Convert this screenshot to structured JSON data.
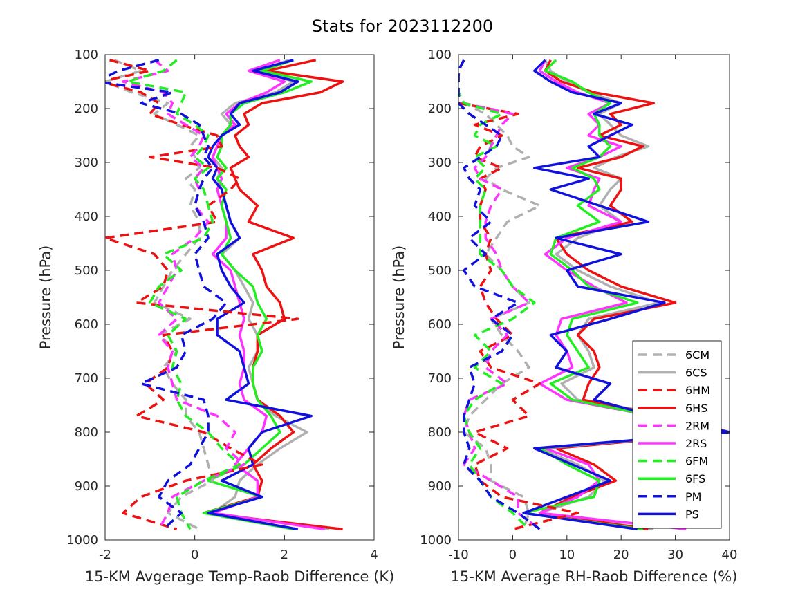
{
  "title": "Stats for 2023112200",
  "colors": {
    "6CM": "#b0b0b0",
    "6CS": "#b0b0b0",
    "6HM": "#ee1111",
    "6HS": "#ee1111",
    "2RM": "#ff33ff",
    "2RS": "#ff33ff",
    "6FM": "#22ee22",
    "6FS": "#22ee22",
    "PM": "#1111dd",
    "PS": "#1111dd"
  },
  "legend": {
    "position": "bottom-right of right panel",
    "entries": [
      {
        "name": "6CM",
        "style": "dashed"
      },
      {
        "name": "6CS",
        "style": "solid"
      },
      {
        "name": "6HM",
        "style": "dashed"
      },
      {
        "name": "6HS",
        "style": "solid"
      },
      {
        "name": "2RM",
        "style": "dashed"
      },
      {
        "name": "2RS",
        "style": "solid"
      },
      {
        "name": "6FM",
        "style": "dashed"
      },
      {
        "name": "6FS",
        "style": "solid"
      },
      {
        "name": "PM",
        "style": "dashed"
      },
      {
        "name": "PS",
        "style": "solid"
      }
    ]
  },
  "chart_data": [
    {
      "type": "line",
      "xlabel": "15-KM Avgerage Temp-Raob Difference (K)",
      "ylabel": "Pressure (hPa)",
      "xlim": [
        -2,
        4
      ],
      "ylim": [
        100,
        1000
      ],
      "y_reversed": true,
      "xticks": [
        "-2",
        "0",
        "2",
        "4"
      ],
      "yticks": [
        "100",
        "200",
        "300",
        "400",
        "500",
        "600",
        "700",
        "800",
        "900",
        "1000"
      ],
      "pressure": [
        110,
        130,
        150,
        170,
        190,
        210,
        230,
        250,
        270,
        290,
        310,
        330,
        350,
        380,
        410,
        440,
        470,
        500,
        530,
        560,
        590,
        620,
        650,
        680,
        710,
        740,
        770,
        800,
        830,
        860,
        890,
        920,
        950,
        980
      ],
      "series": [
        {
          "name": "6CS",
          "x": [
            2.1,
            1.4,
            2.2,
            1.8,
            0.9,
            0.6,
            0.8,
            0.6,
            0.5,
            0.4,
            0.6,
            0.5,
            0.6,
            0.7,
            0.8,
            1.0,
            0.6,
            0.9,
            1.1,
            1.3,
            1.2,
            1.4,
            1.4,
            1.2,
            1.3,
            1.4,
            1.8,
            2.5,
            1.9,
            1.4,
            1.0,
            0.9,
            0.4,
            3.0
          ]
        },
        {
          "name": "6HS",
          "x": [
            2.7,
            1.6,
            3.3,
            2.8,
            1.5,
            1.1,
            1.2,
            0.9,
            1.0,
            1.2,
            0.8,
            0.9,
            1.0,
            1.4,
            1.2,
            2.2,
            1.3,
            1.5,
            1.6,
            1.9,
            2.0,
            1.4,
            1.4,
            1.3,
            1.3,
            1.4,
            1.9,
            2.2,
            1.7,
            1.3,
            1.5,
            1.4,
            0.2,
            3.3
          ]
        },
        {
          "name": "2RS",
          "x": [
            1.9,
            1.2,
            2.0,
            1.6,
            1.0,
            0.7,
            0.9,
            0.6,
            0.5,
            0.4,
            0.5,
            0.6,
            0.5,
            0.6,
            0.7,
            0.7,
            0.4,
            0.8,
            0.9,
            1.0,
            1.1,
            1.0,
            1.1,
            1.1,
            1.0,
            1.1,
            1.6,
            1.5,
            1.2,
            0.9,
            1.4,
            1.4,
            0.4,
            2.9
          ]
        },
        {
          "name": "6FS",
          "x": [
            2.2,
            1.5,
            2.6,
            2.0,
            1.1,
            0.8,
            0.8,
            0.6,
            0.6,
            0.5,
            0.7,
            0.5,
            0.7,
            0.6,
            0.7,
            0.8,
            0.6,
            0.9,
            1.3,
            1.4,
            1.6,
            1.4,
            1.5,
            1.3,
            1.3,
            1.4,
            1.7,
            1.9,
            1.5,
            1.1,
            0.3,
            1.5,
            0.2,
            2.2
          ]
        },
        {
          "name": "PS",
          "x": [
            2.2,
            1.3,
            2.3,
            1.9,
            1.0,
            0.8,
            1.0,
            0.6,
            0.4,
            0.3,
            0.5,
            0.4,
            0.6,
            0.7,
            0.8,
            1.0,
            0.5,
            0.6,
            0.8,
            1.1,
            0.5,
            0.5,
            1.0,
            1.1,
            1.2,
            0.7,
            2.6,
            1.5,
            1.2,
            1.3,
            0.6,
            1.5,
            0.3,
            2.3
          ]
        },
        {
          "name": "6CM",
          "x": [
            -1.8,
            -1.2,
            -2.0,
            -1.4,
            -0.6,
            -0.9,
            -0.4,
            0.1,
            -0.1,
            0.0,
            0.1,
            -0.2,
            0.0,
            -0.1,
            0.1,
            0.1,
            -0.2,
            -0.5,
            -0.7,
            -0.9,
            -0.1,
            -0.8,
            -0.4,
            -0.7,
            -0.5,
            -0.2,
            -0.2,
            0.1,
            0.2,
            0.3,
            0.4,
            -0.3,
            -0.6,
            0.1
          ]
        },
        {
          "name": "6HM",
          "x": [
            -1.9,
            -1.0,
            -2.1,
            -1.2,
            -0.8,
            -1.0,
            -0.3,
            0.5,
            0.6,
            -1.0,
            0.5,
            1.0,
            0.8,
            0.3,
            0.5,
            -2.0,
            -0.9,
            -0.6,
            -0.7,
            -1.3,
            2.3,
            -0.7,
            -0.5,
            -0.6,
            -1.1,
            -0.7,
            -1.3,
            0.2,
            0.8,
            1.5,
            -0.2,
            -1.2,
            -1.6,
            -0.4
          ]
        },
        {
          "name": "2RM",
          "x": [
            -0.9,
            -0.6,
            -1.6,
            -0.7,
            -0.5,
            -0.6,
            -0.2,
            0.2,
            0.1,
            -0.1,
            0.2,
            0.0,
            0.1,
            0.0,
            0.3,
            0.0,
            -0.5,
            -0.4,
            -0.6,
            -0.8,
            -0.4,
            -0.8,
            -0.5,
            -0.6,
            -0.5,
            -0.4,
            0.5,
            0.9,
            0.7,
            1.1,
            0.2,
            -0.5,
            -0.6,
            -0.8
          ]
        },
        {
          "name": "6FM",
          "x": [
            -0.4,
            -0.7,
            -1.5,
            -0.2,
            -0.3,
            -0.4,
            0.0,
            0.3,
            0.2,
            0.0,
            0.3,
            0.0,
            0.2,
            0.3,
            0.4,
            0.2,
            -0.7,
            -0.3,
            -0.8,
            -1.0,
            -0.2,
            -0.6,
            -0.4,
            -0.5,
            -0.3,
            -0.4,
            -0.2,
            0.3,
            0.6,
            1.0,
            0.2,
            -0.4,
            -0.3,
            -0.1
          ]
        },
        {
          "name": "PM",
          "x": [
            -0.8,
            -1.7,
            -2.2,
            -0.5,
            -1.2,
            -0.3,
            0.1,
            0.2,
            0.3,
            0.2,
            0.4,
            0.2,
            0.1,
            0.0,
            0.2,
            0.3,
            0.0,
            0.1,
            0.2,
            0.7,
            0.4,
            -0.3,
            -0.2,
            -0.4,
            -1.2,
            0.2,
            0.3,
            0.3,
            0.1,
            -0.1,
            -0.6,
            -0.8,
            -0.3,
            -0.7
          ]
        }
      ]
    },
    {
      "type": "line",
      "xlabel": "15-KM Average RH-Raob Difference (%)",
      "ylabel": "Pressure (hPa)",
      "xlim": [
        -10,
        40
      ],
      "ylim": [
        100,
        1000
      ],
      "y_reversed": true,
      "xticks": [
        "-10",
        "0",
        "10",
        "20",
        "30",
        "40"
      ],
      "yticks": [
        "100",
        "200",
        "300",
        "400",
        "500",
        "600",
        "700",
        "800",
        "900",
        "1000"
      ],
      "pressure": [
        110,
        130,
        150,
        170,
        190,
        210,
        230,
        250,
        270,
        290,
        310,
        330,
        350,
        380,
        410,
        440,
        470,
        500,
        530,
        560,
        590,
        620,
        650,
        680,
        710,
        740,
        770,
        800,
        830,
        860,
        890,
        920,
        950,
        980
      ],
      "series": [
        {
          "name": "6CS",
          "x": [
            6,
            7,
            10,
            14,
            20,
            16,
            18,
            20,
            25,
            19,
            15,
            20,
            18,
            16,
            20,
            12,
            8,
            12,
            18,
            27,
            14,
            12,
            14,
            15,
            9,
            12,
            30,
            40,
            5,
            12,
            17,
            14,
            5,
            26
          ]
        },
        {
          "name": "6HS",
          "x": [
            7,
            6,
            9,
            15,
            26,
            18,
            20,
            16,
            24,
            20,
            12,
            20,
            20,
            18,
            22,
            8,
            10,
            14,
            20,
            30,
            15,
            12,
            15,
            16,
            14,
            13,
            28,
            40,
            8,
            15,
            19,
            11,
            5,
            25
          ]
        },
        {
          "name": "2RS",
          "x": [
            6,
            5,
            8,
            12,
            18,
            14,
            16,
            14,
            20,
            16,
            10,
            16,
            15,
            14,
            20,
            10,
            6,
            10,
            15,
            21,
            9,
            8,
            10,
            11,
            5,
            10,
            26,
            40,
            6,
            14,
            16,
            12,
            5,
            32
          ]
        },
        {
          "name": "6FS",
          "x": [
            8,
            6,
            11,
            14,
            18,
            15,
            16,
            16,
            18,
            16,
            11,
            15,
            16,
            12,
            16,
            8,
            7,
            11,
            14,
            23,
            11,
            10,
            12,
            14,
            7,
            11,
            26,
            40,
            5,
            10,
            16,
            15,
            2,
            24
          ]
        },
        {
          "name": "PS",
          "x": [
            6,
            4,
            7,
            11,
            20,
            15,
            22,
            18,
            14,
            16,
            4,
            14,
            7,
            16,
            25,
            8,
            20,
            10,
            12,
            28,
            18,
            7,
            10,
            8,
            18,
            15,
            26,
            40,
            4,
            11,
            18,
            10,
            2,
            23
          ]
        },
        {
          "name": "6CM",
          "x": [
            -9,
            -10,
            -10,
            -10,
            -9,
            -5,
            -3,
            -1,
            0,
            3,
            -3,
            -5,
            -2,
            5,
            -1,
            -3,
            -5,
            -2,
            0,
            3,
            -4,
            -2,
            1,
            3,
            -2,
            -5,
            -8,
            -9,
            -5,
            -4,
            -4,
            2,
            3,
            2
          ]
        },
        {
          "name": "6HM",
          "x": [
            -9,
            -10,
            -10,
            -10,
            -10,
            1,
            -7,
            -2,
            -6,
            -7,
            -2,
            -6,
            -5,
            -6,
            -6,
            -4,
            -5,
            -4,
            -6,
            -5,
            -3,
            0,
            -6,
            -4,
            5,
            0,
            3,
            -7,
            -1,
            -7,
            -6,
            -2,
            12,
            0
          ]
        },
        {
          "name": "2RM",
          "x": [
            -9,
            -10,
            -10,
            -10,
            -9,
            0,
            -2,
            -3,
            -4,
            -5,
            -7,
            -6,
            -2,
            -4,
            -5,
            -5,
            -3,
            -2,
            0,
            3,
            -4,
            -1,
            -4,
            -5,
            -1,
            -8,
            -9,
            -8,
            -7,
            -9,
            -4,
            1,
            1,
            5
          ]
        },
        {
          "name": "6FM",
          "x": [
            -9,
            -10,
            -10,
            -10,
            -9,
            -2,
            -6,
            -7,
            -3,
            -7,
            -5,
            -7,
            -5,
            -6,
            -6,
            -6,
            -6,
            -2,
            0,
            4,
            0,
            -7,
            -4,
            -7,
            -2,
            -7,
            -9,
            -8,
            -6,
            -8,
            -6,
            -4,
            0,
            3
          ]
        },
        {
          "name": "PM",
          "x": [
            -9,
            -10,
            -10,
            -10,
            -10,
            -8,
            -5,
            -2,
            -3,
            -6,
            -9,
            -8,
            -6,
            -7,
            -4,
            -8,
            -5,
            -9,
            -7,
            1,
            -4,
            0,
            -2,
            -8,
            -7,
            -8,
            -9,
            -9,
            -8,
            -9,
            -6,
            -4,
            1,
            5
          ]
        }
      ]
    }
  ]
}
